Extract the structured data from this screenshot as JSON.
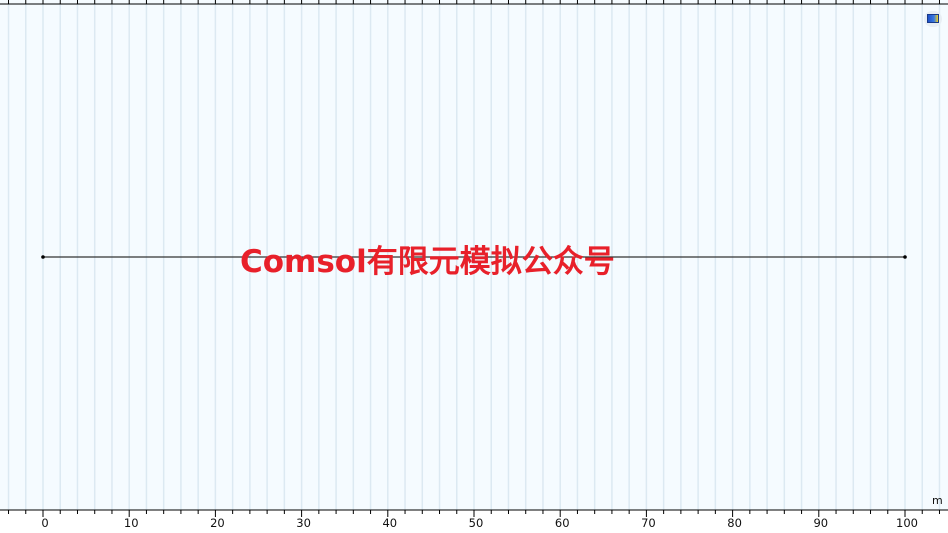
{
  "graphics": {
    "axis_unit": "m",
    "x_range": [
      -5,
      105
    ],
    "major_tick_step": 10,
    "minor_tick_step": 2,
    "grid_step": 2,
    "tick_labels": [
      "0",
      "10",
      "20",
      "30",
      "40",
      "50",
      "60",
      "70",
      "80",
      "90",
      "100"
    ],
    "geometry": {
      "type": "interval",
      "start": 0,
      "end": 100
    },
    "background_color": "#f5fbff",
    "grid_color": "#dce9f2",
    "line_color": "#333333"
  },
  "watermark": {
    "text": "Comsol有限元模拟公众号",
    "color": "#e8202a"
  },
  "toolbar": {
    "view_button_icon": "view-icon"
  }
}
